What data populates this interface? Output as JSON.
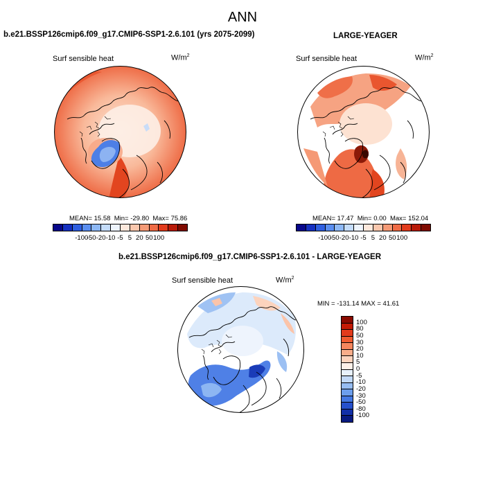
{
  "title": "ANN",
  "panels": [
    {
      "title": "b.e21.BSSP126cmip6.f09_g17.CMIP6-SSP1-2.6.101 (yrs 2075-2099)",
      "variable": "Surf sensible heat",
      "units_base": "W/m",
      "units_exp": "2",
      "stats": {
        "mean_label": "MEAN=",
        "mean": "15.58",
        "min_label": "Min=",
        "min": "-29.80",
        "max_label": "Max=",
        "max": "75.86"
      }
    },
    {
      "title": "LARGE-YEAGER",
      "variable": "Surf sensible heat",
      "units_base": "W/m",
      "units_exp": "2",
      "stats": {
        "mean_label": "MEAN=",
        "mean": "17.47",
        "min_label": "Min=",
        "min": "0.00",
        "max_label": "Max=",
        "max": "152.04"
      }
    },
    {
      "title": "b.e21.BSSP126cmip6.f09_g17.CMIP6-SSP1-2.6.101 - LARGE-YEAGER",
      "variable": "Surf sensible heat",
      "units_base": "W/m",
      "units_exp": "2",
      "stats": {
        "min_label": "MIN =",
        "min": "-131.14",
        "max_label": "MAX =",
        "max": "41.61"
      }
    }
  ],
  "colorbar_horizontal": {
    "ticks": [
      "-100",
      "-50",
      "-20",
      "-10",
      "-5",
      "5",
      "20",
      "50",
      "100"
    ],
    "colors": [
      "#08088a",
      "#1530c0",
      "#2f5fe0",
      "#5a8ef0",
      "#8db8f5",
      "#c4dcfa",
      "#eef4fd",
      "#fde8dc",
      "#fac7ad",
      "#f59a76",
      "#ef6b45",
      "#e23b1c",
      "#b81a08",
      "#7f0a00"
    ]
  },
  "colorbar_vertical": {
    "ticks": [
      "100",
      "80",
      "50",
      "30",
      "20",
      "10",
      "5",
      "0",
      "-5",
      "-10",
      "-20",
      "-30",
      "-50",
      "-80",
      "-100"
    ],
    "colors": [
      "#8a0a00",
      "#c41a05",
      "#e23b1c",
      "#ef5b30",
      "#f5865d",
      "#f9ad8a",
      "#fcd3bd",
      "#fdf0e8",
      "#e8f1fc",
      "#c2d9f8",
      "#97bdf2",
      "#6c9eec",
      "#4478e2",
      "#2550cc",
      "#1230a8",
      "#081a80"
    ]
  }
}
